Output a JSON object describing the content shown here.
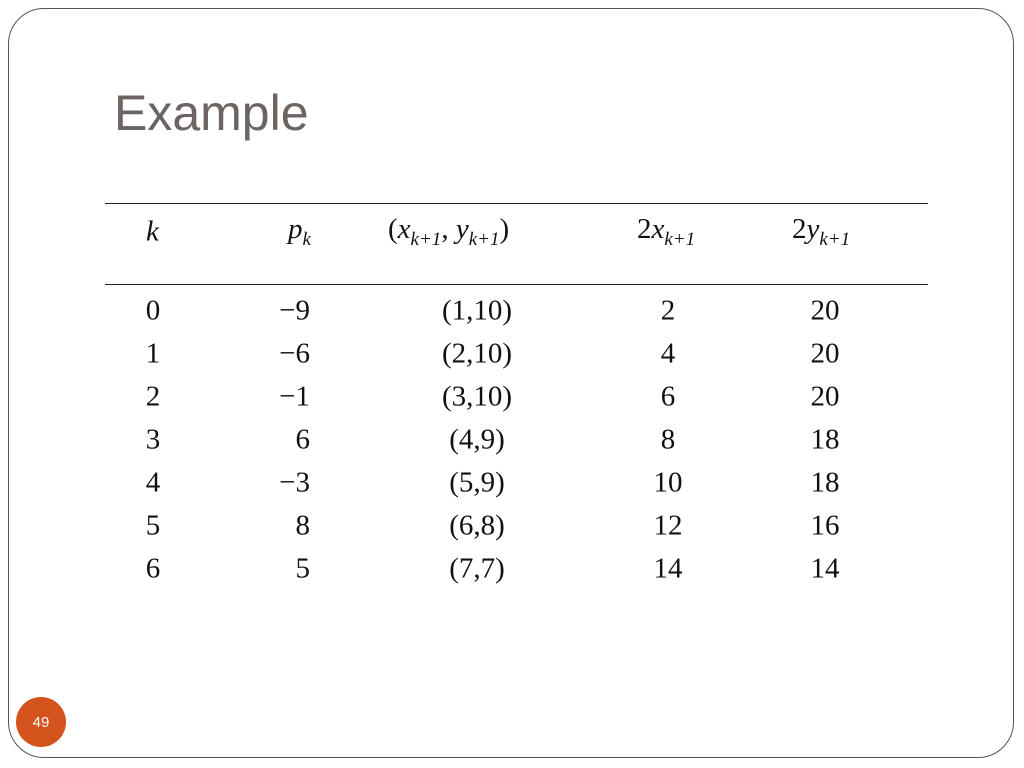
{
  "header": {
    "title": "Example"
  },
  "table": {
    "headers": [
      [
        {
          "i": "k"
        }
      ],
      [
        {
          "i": "p"
        },
        {
          "sub": "k"
        }
      ],
      [
        {
          "t": "("
        },
        {
          "i": "x"
        },
        {
          "sub": "k+1"
        },
        {
          "t": ", "
        },
        {
          "i": "y"
        },
        {
          "sub": "k+1"
        },
        {
          "t": ")"
        }
      ],
      [
        {
          "t": "2"
        },
        {
          "i": "x"
        },
        {
          "sub": "k+1"
        }
      ],
      [
        {
          "t": "2"
        },
        {
          "i": "y"
        },
        {
          "sub": "k+1"
        }
      ]
    ],
    "rows": [
      [
        "0",
        "−9",
        "(1,10)",
        "2",
        "20"
      ],
      [
        "1",
        "−6",
        "(2,10)",
        "4",
        "20"
      ],
      [
        "2",
        "−1",
        "(3,10)",
        "6",
        "20"
      ],
      [
        "3",
        "6",
        "(4,9)",
        "8",
        "18"
      ],
      [
        "4",
        "−3",
        "(5,9)",
        "10",
        "18"
      ],
      [
        "5",
        "8",
        "(6,8)",
        "12",
        "16"
      ],
      [
        "6",
        "5",
        "(7,7)",
        "14",
        "14"
      ]
    ]
  },
  "footer": {
    "page_number": "49"
  }
}
